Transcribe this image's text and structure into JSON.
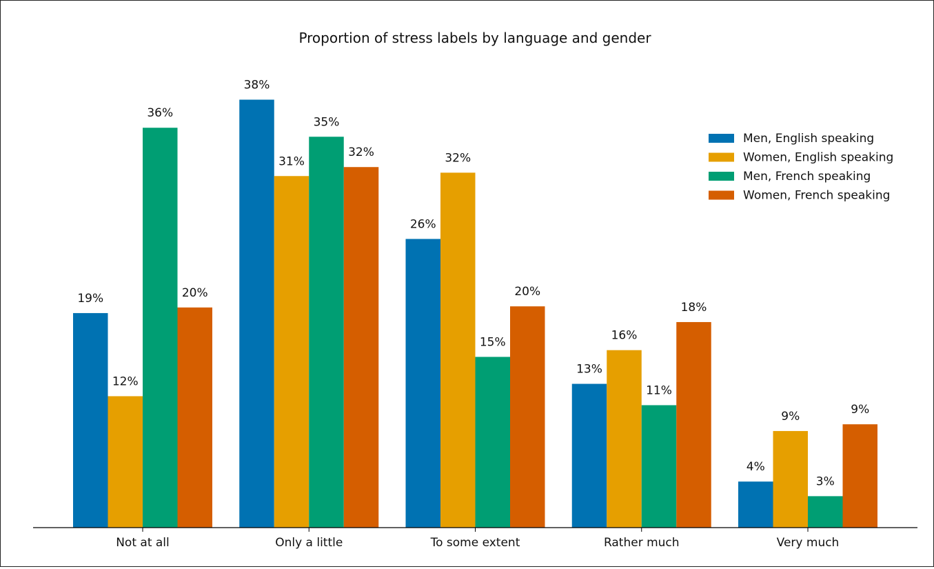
{
  "chart_data": {
    "type": "bar",
    "title": "Proportion of stress labels by language and gender",
    "xlabel": "",
    "ylabel": "",
    "categories": [
      "Not at all",
      "Only a little",
      "To some extent",
      "Rather much",
      "Very much"
    ],
    "series": [
      {
        "name": "Men, English speaking",
        "color": "#0072b2",
        "values": [
          19.1,
          38.1,
          25.7,
          12.8,
          4.1
        ],
        "labels": [
          "19%",
          "38%",
          "26%",
          "13%",
          "4%"
        ]
      },
      {
        "name": "Women, English speaking",
        "color": "#e69f00",
        "values": [
          11.7,
          31.3,
          31.6,
          15.8,
          8.6
        ],
        "labels": [
          "12%",
          "31%",
          "32%",
          "16%",
          "9%"
        ]
      },
      {
        "name": "Men, French speaking",
        "color": "#009e73",
        "values": [
          35.6,
          34.8,
          15.2,
          10.9,
          2.8
        ],
        "labels": [
          "36%",
          "35%",
          "15%",
          "11%",
          "3%"
        ]
      },
      {
        "name": "Women, French speaking",
        "color": "#d55e00",
        "values": [
          19.6,
          32.1,
          19.7,
          18.3,
          9.2
        ],
        "labels": [
          "20%",
          "32%",
          "20%",
          "18%",
          "9%"
        ]
      }
    ],
    "ylim": [
      0,
      42
    ],
    "grid": false,
    "y_axis_visible": false,
    "legend_position": "top-right"
  }
}
